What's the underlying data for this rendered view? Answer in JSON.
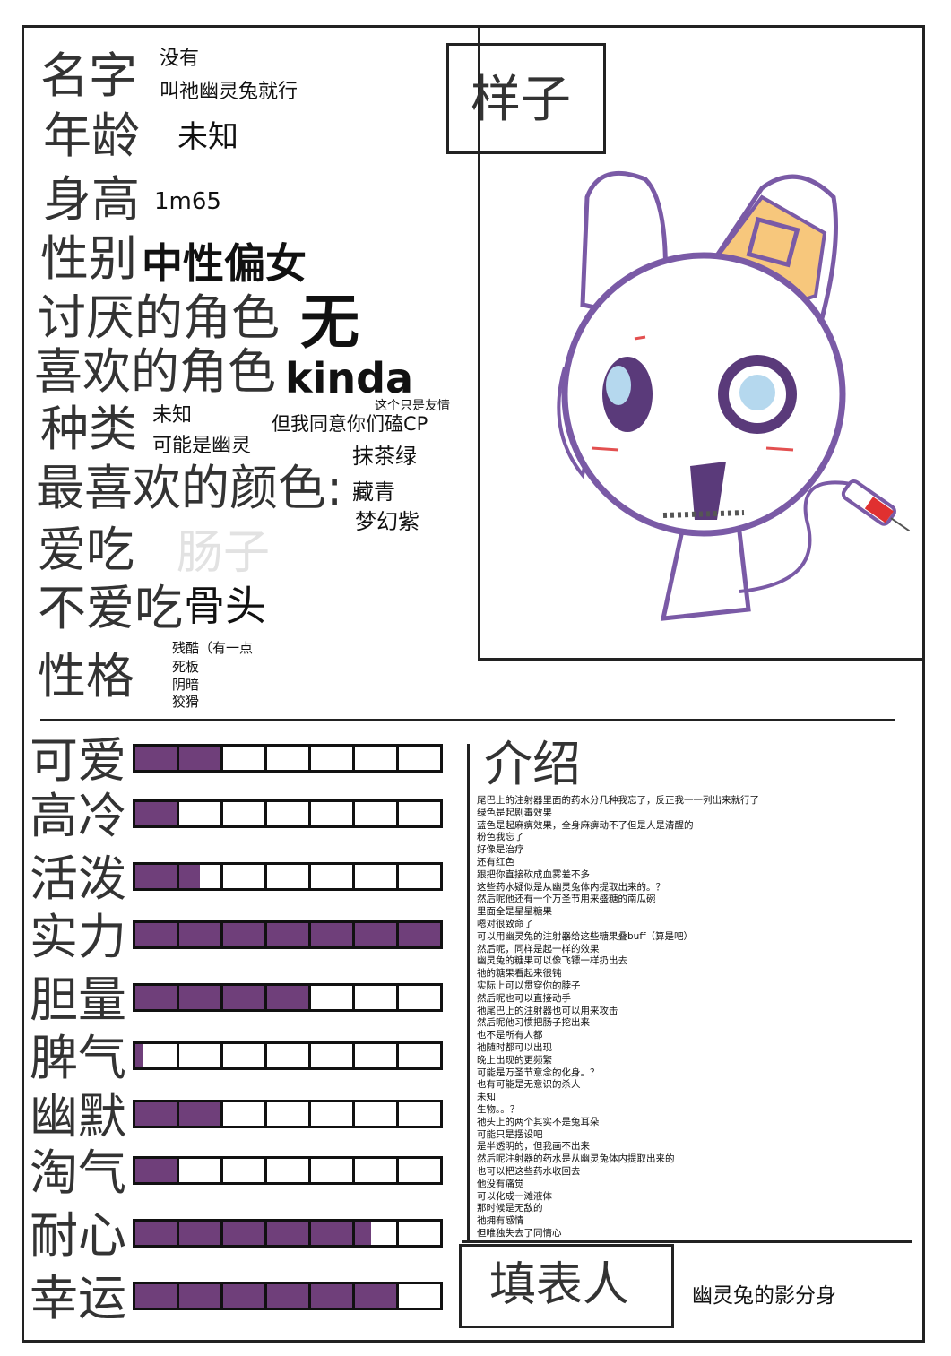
{
  "profile": {
    "name_label": "名字",
    "name_value_1": "没有",
    "name_value_2": "叫祂幽灵兔就行",
    "age_label": "年龄",
    "age_value": "未知",
    "height_label": "身高",
    "height_value": "1m65",
    "gender_label": "性别",
    "gender_value": "中性偏女",
    "disliked_label": "讨厌的角色",
    "disliked_value": "无",
    "liked_label": "喜欢的角色",
    "liked_value": "kinda",
    "liked_note_small": "这个只是友情",
    "liked_note": "但我同意你们磕CP",
    "species_label": "种类",
    "species_value_1": "未知",
    "species_value_2": "可能是幽灵",
    "color_label": "最喜欢的颜色:",
    "colors": [
      "抹茶绿",
      "藏青",
      "梦幻紫"
    ],
    "likes_food_label": "爱吃",
    "likes_food_value": "肠子",
    "dislikes_food_label": "不爱吃",
    "dislikes_food_value": "骨头",
    "personality_label": "性格",
    "personality": [
      "残酷（有一点",
      "死板",
      "阴暗",
      "狡猾"
    ]
  },
  "appearance": {
    "label": "样子"
  },
  "stats_max": 7,
  "stats_color": "#6f3f7a",
  "stats": [
    {
      "label": "可爱",
      "value": 2
    },
    {
      "label": "高冷",
      "value": 1
    },
    {
      "label": "活泼",
      "value": 1.5
    },
    {
      "label": "实力",
      "value": 7
    },
    {
      "label": "胆量",
      "value": 4
    },
    {
      "label": "脾气",
      "value": 0.2
    },
    {
      "label": "幽默",
      "value": 2
    },
    {
      "label": "淘气",
      "value": 1
    },
    {
      "label": "耐心",
      "value": 5.4
    },
    {
      "label": "幸运",
      "value": 6
    }
  ],
  "intro": {
    "title": "介绍",
    "lines": [
      "尾巴上的注射器里面的药水分几种我忘了，反正我一一列出来就行了",
      "绿色是起剧毒效果",
      "蓝色是起麻痹效果，全身麻痹动不了但是人是清醒的",
      "粉色我忘了",
      "好像是治疗",
      "还有红色",
      "跟把你直接砍成血雾差不多",
      "这些药水疑似是从幽灵兔体内提取出来的。？",
      "然后呢他还有一个万圣节用来盛糖的南瓜碗",
      "里面全是星星糖果",
      "嗯对很致命了",
      " 可以用幽灵兔的注射器给这些糖果叠buff（算是吧）",
      "然后呢，同样是起一样的效果",
      "幽灵兔的糖果可以像飞镖一样扔出去",
      "祂的糖果看起来很钝",
      "实际上可以贯穿你的脖子",
      "然后呢也可以直接动手",
      "祂尾巴上的注射器也可以用来攻击",
      "然后呢他习惯把肠子挖出来",
      "也不是所有人都",
      "祂随时都可以出现",
      "晚上出现的更频繁",
      "可能是万圣节意念的化身。？",
      "也有可能是无意识的杀人",
      "未知",
      "生物。。？",
      "祂头上的两个其实不是兔耳朵",
      "可能只是摆设吧",
      "是半透明的，但我画不出来",
      "然后呢注射器的药水是从幽灵兔体内提取出来的",
      "也可以把这些药水收回去",
      "他没有痛觉",
      "可以化成一滩液体",
      "那时候是无敌的",
      "祂拥有感情",
      "但唯独失去了同情心"
    ]
  },
  "filler": {
    "label": "填表人",
    "value": "幽灵兔的影分身"
  }
}
